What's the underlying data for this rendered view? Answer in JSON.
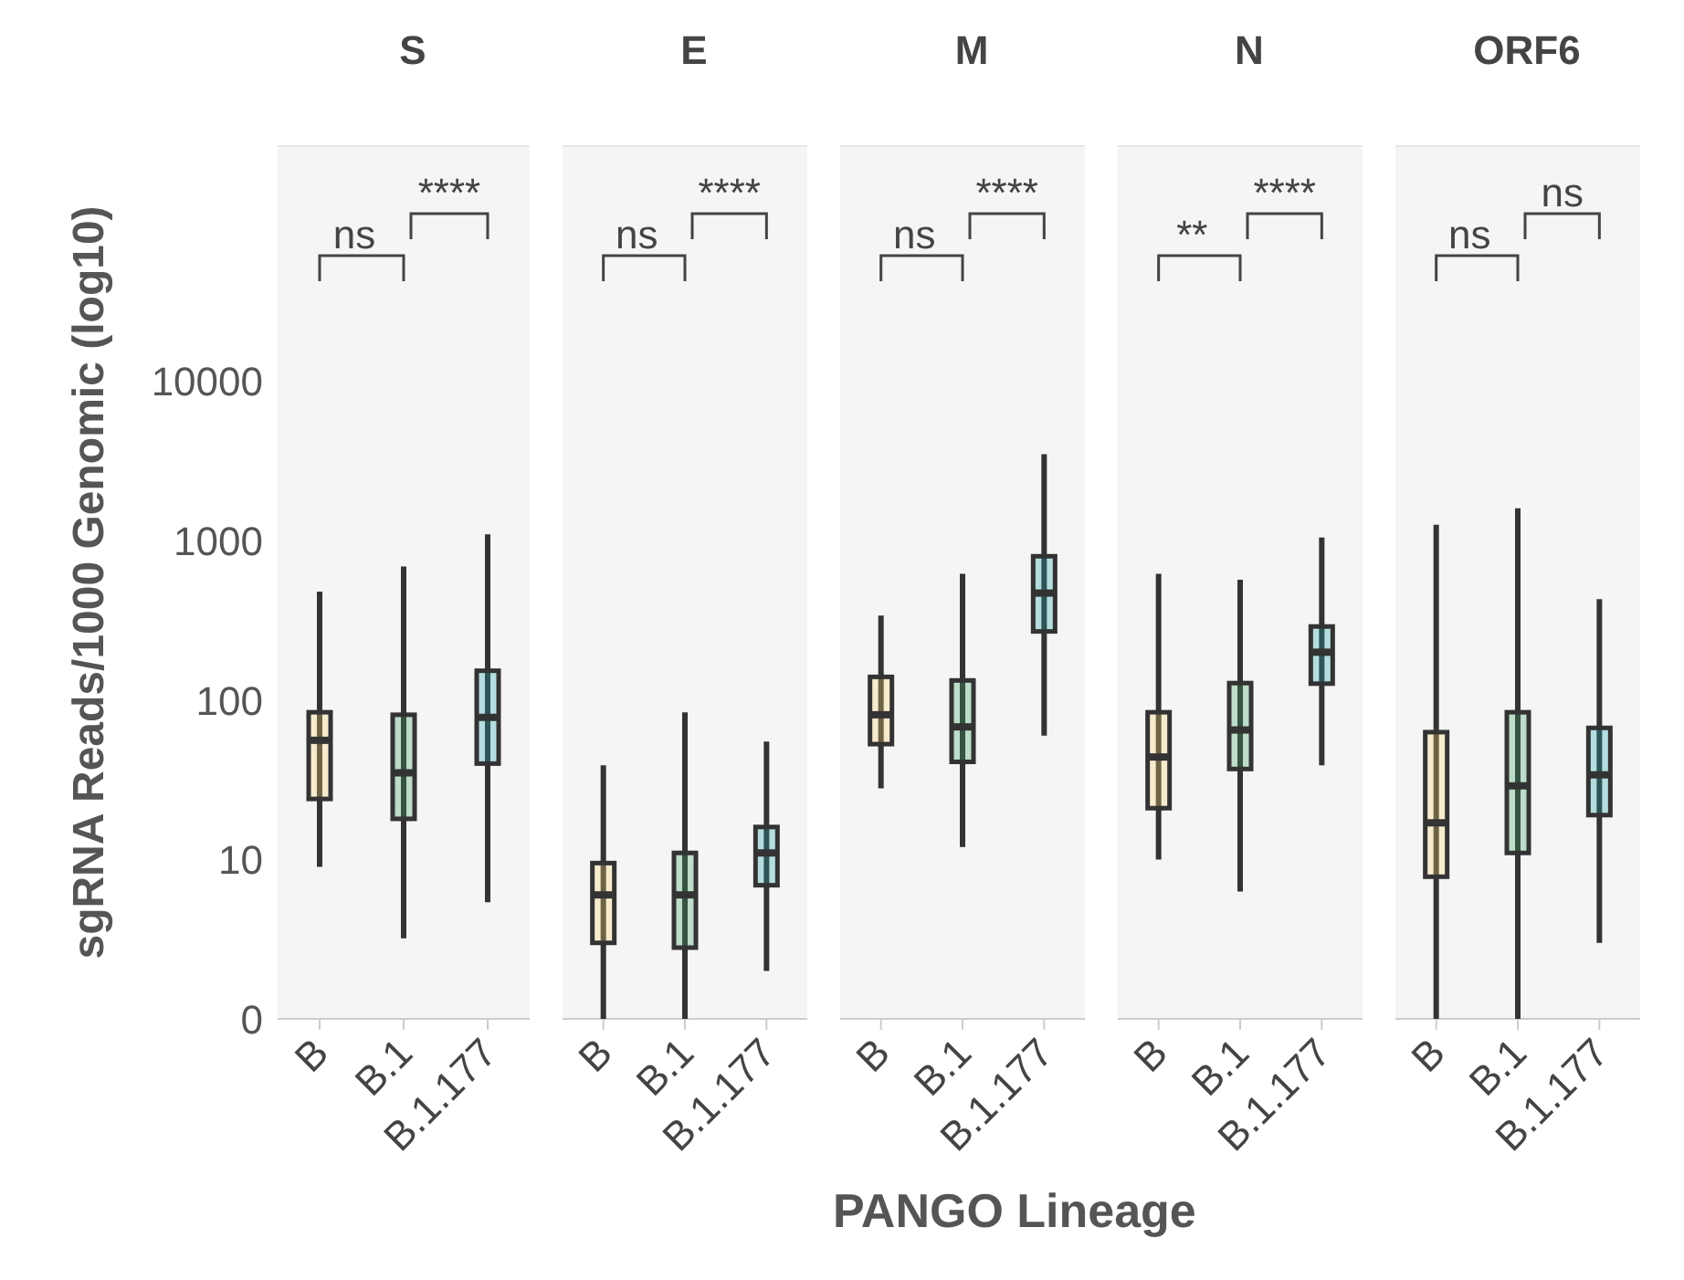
{
  "chart_data": [
    {
      "type": "box",
      "title": "S",
      "ylabel": "sgRNA Reads/1000 Genomic (log10)",
      "categories": [
        "B",
        "B.1",
        "B.1.177"
      ],
      "colors": [
        "#fdd373",
        "#3aa364",
        "#22a5b0"
      ],
      "log": true,
      "ylim": [
        0,
        300000
      ],
      "yticks": [
        0,
        10,
        100,
        1000,
        10000
      ],
      "grid": false,
      "annotations": [
        "ns",
        "****"
      ],
      "boxes": [
        {
          "low": 9,
          "q1": 24,
          "median": 56,
          "q3": 84,
          "high": 480
        },
        {
          "low": 3.2,
          "q1": 18,
          "median": 35,
          "q3": 81,
          "high": 690
        },
        {
          "low": 5.4,
          "q1": 40,
          "median": 78,
          "q3": 153,
          "high": 1100
        }
      ]
    },
    {
      "type": "box",
      "title": "E",
      "categories": [
        "B",
        "B.1",
        "B.1.177"
      ],
      "colors": [
        "#fdd373",
        "#3aa364",
        "#22a5b0"
      ],
      "log": true,
      "ylim": [
        0,
        300000
      ],
      "tick_labels": "x",
      "grid": false,
      "annotations": [
        "ns",
        "****"
      ],
      "boxes": [
        {
          "low": 1,
          "q1": 3,
          "median": 6,
          "q3": 9.5,
          "high": 39
        },
        {
          "low": 1,
          "q1": 2.8,
          "median": 6,
          "q3": 11,
          "high": 84
        },
        {
          "low": 2,
          "q1": 6.9,
          "median": 11,
          "q3": 16,
          "high": 55
        }
      ]
    },
    {
      "type": "box",
      "title": "M",
      "xlabel": "PANGO Lineage",
      "categories": [
        "B",
        "B.1",
        "B.1.177"
      ],
      "colors": [
        "#fdd373",
        "#3aa364",
        "#22a5b0"
      ],
      "log": true,
      "ylim": [
        0,
        300000
      ],
      "tick_labels": "x",
      "grid": false,
      "annotations": [
        "ns",
        "****"
      ],
      "boxes": [
        {
          "low": 28,
          "q1": 53,
          "median": 81,
          "q3": 140,
          "high": 340
        },
        {
          "low": 12,
          "q1": 41,
          "median": 68,
          "q3": 133,
          "high": 620
        },
        {
          "low": 60,
          "q1": 270,
          "median": 470,
          "q3": 800,
          "high": 3500
        }
      ]
    },
    {
      "type": "box",
      "title": "N",
      "categories": [
        "B",
        "B.1",
        "B.1.177"
      ],
      "colors": [
        "#fdd373",
        "#3aa364",
        "#22a5b0"
      ],
      "log": true,
      "ylim": [
        0,
        300000
      ],
      "tick_labels": "x",
      "grid": false,
      "annotations": [
        "**",
        "****"
      ],
      "boxes": [
        {
          "low": 10,
          "q1": 21,
          "median": 44,
          "q3": 84,
          "high": 620
        },
        {
          "low": 6.3,
          "q1": 37,
          "median": 65,
          "q3": 128,
          "high": 570
        },
        {
          "low": 39,
          "q1": 127,
          "median": 200,
          "q3": 290,
          "high": 1050
        }
      ]
    },
    {
      "type": "box",
      "title": "ORF6",
      "categories": [
        "B",
        "B.1",
        "B.1.177"
      ],
      "colors": [
        "#fdd373",
        "#3aa364",
        "#22a5b0"
      ],
      "log": true,
      "ylim": [
        0,
        300000
      ],
      "tick_labels": "x",
      "grid": false,
      "annotations": [
        "ns",
        "ns"
      ],
      "boxes": [
        {
          "low": 1,
          "q1": 7.8,
          "median": 17,
          "q3": 63,
          "high": 1260
        },
        {
          "low": 1,
          "q1": 11,
          "median": 29,
          "q3": 84,
          "high": 1600
        },
        {
          "low": 3,
          "q1": 19,
          "median": 34,
          "q3": 67,
          "high": 430
        }
      ]
    }
  ]
}
